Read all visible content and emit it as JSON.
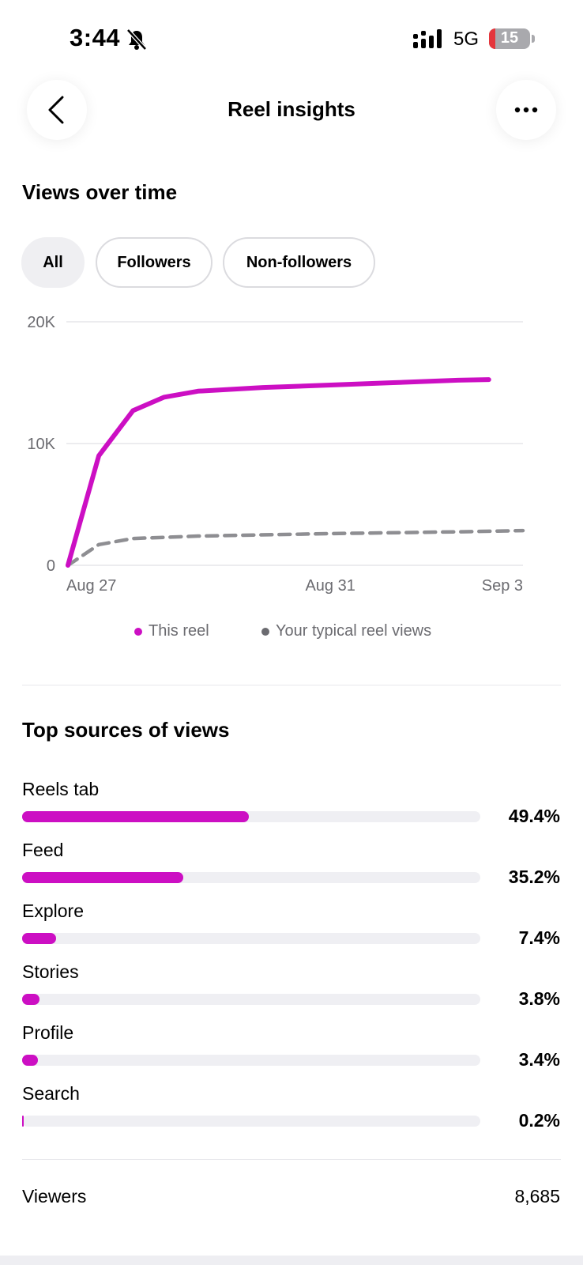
{
  "status_bar": {
    "time": "3:44",
    "network": "5G",
    "battery": "15",
    "battery_level": 0.15,
    "icons": [
      "bell-slash-icon",
      "signal-icon",
      "battery-icon"
    ]
  },
  "header": {
    "title": "Reel insights",
    "back_icon": "chevron-left-icon",
    "more_icon": "ellipsis-icon"
  },
  "views_over_time": {
    "title": "Views over time",
    "filters": [
      {
        "label": "All",
        "selected": true
      },
      {
        "label": "Followers",
        "selected": false
      },
      {
        "label": "Non-followers",
        "selected": false
      }
    ]
  },
  "chart_data": {
    "type": "line",
    "x_tick_labels": [
      "Aug 27",
      "Aug 31",
      "Sep 3"
    ],
    "y_tick_labels": [
      "20K",
      "10K",
      "0"
    ],
    "ylim": [
      0,
      20000
    ],
    "grid": true,
    "legend_position": "bottom",
    "series": [
      {
        "name": "This reel",
        "color": "#cc0fc3",
        "style": "solid",
        "points": [
          {
            "x": "Aug 27",
            "y": 0
          },
          {
            "x": "Aug 27",
            "y": 9000
          },
          {
            "x": "Aug 28",
            "y": 12700
          },
          {
            "x": "Aug 28",
            "y": 13800
          },
          {
            "x": "Aug 29",
            "y": 14300
          },
          {
            "x": "Aug 30",
            "y": 14600
          },
          {
            "x": "Aug 31",
            "y": 14800
          },
          {
            "x": "Sep 1",
            "y": 15000
          },
          {
            "x": "Sep 2",
            "y": 15200
          },
          {
            "x": "Sep 2",
            "y": 15250
          }
        ]
      },
      {
        "name": "Your typical reel views",
        "color": "#8e8e92",
        "style": "dashed",
        "points": [
          {
            "x": "Aug 27",
            "y": 0
          },
          {
            "x": "Aug 27",
            "y": 1700
          },
          {
            "x": "Aug 28",
            "y": 2200
          },
          {
            "x": "Aug 29",
            "y": 2400
          },
          {
            "x": "Aug 31",
            "y": 2600
          },
          {
            "x": "Sep 2",
            "y": 2750
          },
          {
            "x": "Sep 3",
            "y": 2850
          }
        ]
      }
    ]
  },
  "sources": {
    "title": "Top sources of views",
    "items": [
      {
        "label": "Reels tab",
        "percent": "49.4%",
        "value": 49.4
      },
      {
        "label": "Feed",
        "percent": "35.2%",
        "value": 35.2
      },
      {
        "label": "Explore",
        "percent": "7.4%",
        "value": 7.4
      },
      {
        "label": "Stories",
        "percent": "3.8%",
        "value": 3.8
      },
      {
        "label": "Profile",
        "percent": "3.4%",
        "value": 3.4
      },
      {
        "label": "Search",
        "percent": "0.2%",
        "value": 0.2
      }
    ]
  },
  "viewers": {
    "label": "Viewers",
    "value": "8,685"
  },
  "colors": {
    "accent": "#cc0fc3",
    "typical": "#8e8e92"
  }
}
